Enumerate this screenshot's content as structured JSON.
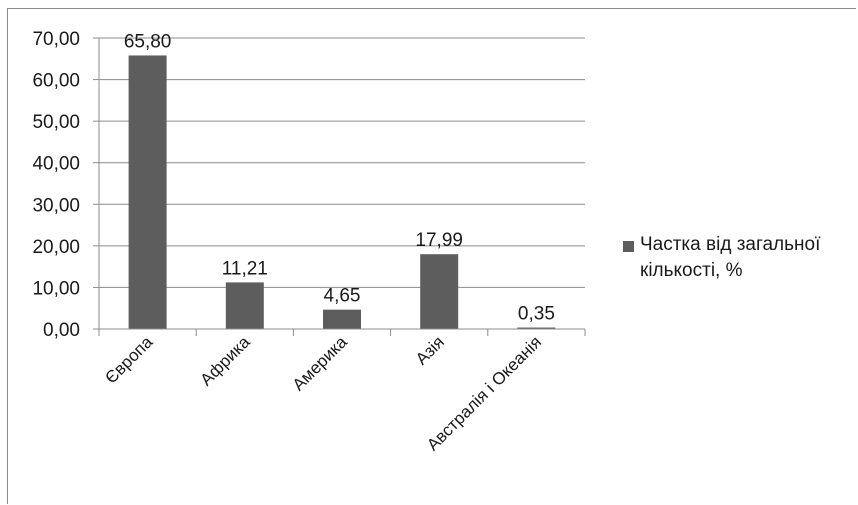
{
  "chart_data": {
    "type": "bar",
    "categories": [
      "Європа",
      "Африка",
      "Америка",
      "Азія",
      "Австралія і Океанія"
    ],
    "series": [
      {
        "name": "Частка від загальної кількості, %",
        "values": [
          65.8,
          11.21,
          4.65,
          17.99,
          0.35
        ]
      }
    ],
    "data_labels": [
      "65,80",
      "11,21",
      "4,65",
      "17,99",
      "0,35"
    ],
    "yticks": [
      "0,00",
      "10,00",
      "20,00",
      "30,00",
      "40,00",
      "50,00",
      "60,00",
      "70,00"
    ],
    "ylim": [
      0,
      70
    ],
    "grid": true,
    "legend_position": "right",
    "bar_color": "#5d5d5d",
    "grid_color": "#8c8c8c"
  }
}
